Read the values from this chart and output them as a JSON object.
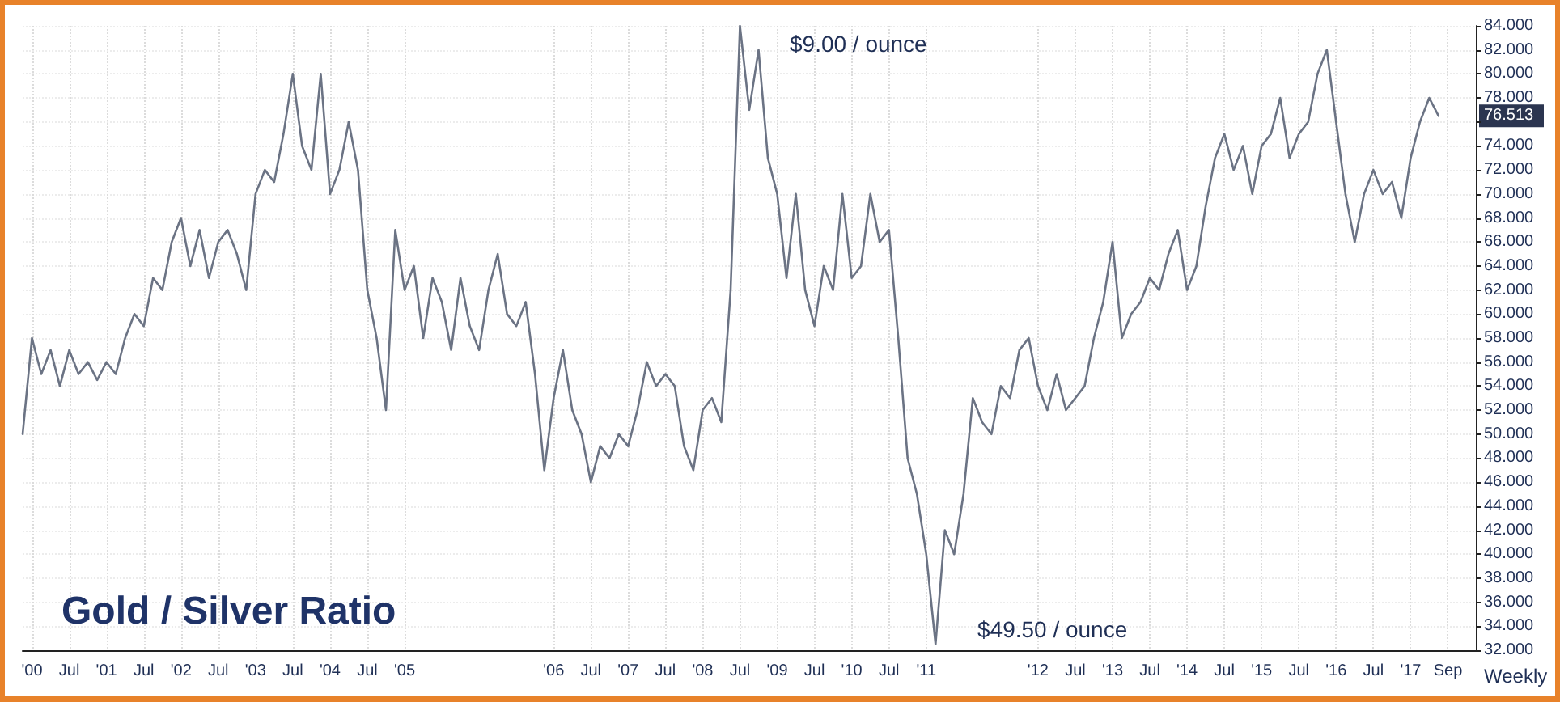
{
  "chart_data": {
    "type": "line",
    "title": "Gold / Silver Ratio",
    "categories": [
      null,
      "'00",
      null,
      null,
      null,
      "Jul",
      null,
      null,
      null,
      "'01",
      null,
      null,
      null,
      "Jul",
      null,
      null,
      null,
      "'02",
      null,
      null,
      null,
      "Jul",
      null,
      null,
      null,
      "'03",
      null,
      null,
      null,
      "Jul",
      null,
      null,
      null,
      "'04",
      null,
      null,
      null,
      "Jul",
      null,
      null,
      null,
      "'05",
      null,
      null,
      null,
      null,
      null,
      null,
      null,
      null,
      null,
      null,
      null,
      null,
      null,
      null,
      null,
      "'06",
      null,
      null,
      null,
      "Jul",
      null,
      null,
      null,
      "'07",
      null,
      null,
      null,
      "Jul",
      null,
      null,
      null,
      "'08",
      null,
      null,
      null,
      "Jul",
      null,
      null,
      null,
      "'09",
      null,
      null,
      null,
      "Jul",
      null,
      null,
      null,
      "'10",
      null,
      null,
      null,
      "Jul",
      null,
      null,
      null,
      "'11",
      null,
      null,
      null,
      null,
      null,
      null,
      null,
      null,
      null,
      null,
      null,
      "'12",
      null,
      null,
      null,
      "Jul",
      null,
      null,
      null,
      "'13",
      null,
      null,
      null,
      "Jul",
      null,
      null,
      null,
      "'14",
      null,
      null,
      null,
      "Jul",
      null,
      null,
      null,
      "'15",
      null,
      null,
      null,
      "Jul",
      null,
      null,
      null,
      "'16",
      null,
      null,
      null,
      "Jul",
      null,
      null,
      null,
      "'17",
      null,
      null,
      null,
      "Sep",
      null,
      null,
      null
    ],
    "series": [
      {
        "color": "#6b7384",
        "values": [
          50,
          58,
          55,
          57,
          54,
          57,
          55,
          56,
          54.5,
          56,
          55,
          58,
          60,
          59,
          63,
          62,
          66,
          68,
          64,
          67,
          63,
          66,
          67,
          65,
          62,
          70,
          72,
          71,
          75,
          80,
          74,
          72,
          80,
          70,
          72,
          76,
          72,
          62,
          58,
          52,
          67,
          62,
          64,
          58,
          63,
          61,
          57,
          63,
          59,
          57,
          62,
          65,
          60,
          59,
          61,
          55,
          47,
          53,
          57,
          52,
          50,
          46,
          49,
          48,
          50,
          49,
          52,
          56,
          54,
          55,
          54,
          49,
          47,
          52,
          53,
          51,
          62,
          84,
          77,
          82,
          73,
          70,
          63,
          70,
          62,
          59,
          64,
          62,
          70,
          63,
          64,
          70,
          66,
          67,
          58,
          48,
          45,
          40,
          32.5,
          42,
          40,
          45,
          53,
          51,
          50,
          54,
          53,
          57,
          58,
          54,
          52,
          55,
          52,
          53,
          54,
          58,
          61,
          66,
          58,
          60,
          61,
          63,
          62,
          65,
          67,
          62,
          64,
          69,
          73,
          75,
          72,
          74,
          70,
          74,
          75,
          78,
          73,
          75,
          76,
          80,
          82,
          76,
          70,
          66,
          70,
          72,
          70,
          71,
          68,
          73,
          76,
          78,
          76.5,
          null,
          null,
          null,
          null
        ]
      }
    ],
    "ylim": [
      32,
      84
    ],
    "yticks": [
      {
        "value": 32,
        "label": "32.000"
      },
      {
        "value": 34,
        "label": "34.000"
      },
      {
        "value": 36,
        "label": "36.000"
      },
      {
        "value": 38,
        "label": "38.000"
      },
      {
        "value": 40,
        "label": "40.000"
      },
      {
        "value": 42,
        "label": "42.000"
      },
      {
        "value": 44,
        "label": "44.000"
      },
      {
        "value": 46,
        "label": "46.000"
      },
      {
        "value": 48,
        "label": "48.000"
      },
      {
        "value": 50,
        "label": "50.000"
      },
      {
        "value": 52,
        "label": "52.000"
      },
      {
        "value": 54,
        "label": "54.000"
      },
      {
        "value": 56,
        "label": "56.000"
      },
      {
        "value": 58,
        "label": "58.000"
      },
      {
        "value": 60,
        "label": "60.000"
      },
      {
        "value": 62,
        "label": "62.000"
      },
      {
        "value": 64,
        "label": "64.000"
      },
      {
        "value": 66,
        "label": "66.000"
      },
      {
        "value": 68,
        "label": "68.000"
      },
      {
        "value": 70,
        "label": "70.000"
      },
      {
        "value": 72,
        "label": "72.000"
      },
      {
        "value": 74,
        "label": "74.000"
      },
      {
        "value": 76,
        "label": null
      },
      {
        "value": 78,
        "label": "78.000"
      },
      {
        "value": 80,
        "label": "80.000"
      },
      {
        "value": 82,
        "label": "82.000"
      },
      {
        "value": 84,
        "label": "84.000"
      }
    ],
    "annotations": [
      "$9.00 / ounce",
      "$49.50 / ounce",
      "Weekly",
      {
        "text": "76.513",
        "y": 76.513
      }
    ],
    "grid": true,
    "marker": "none",
    "line_style": "solid"
  }
}
